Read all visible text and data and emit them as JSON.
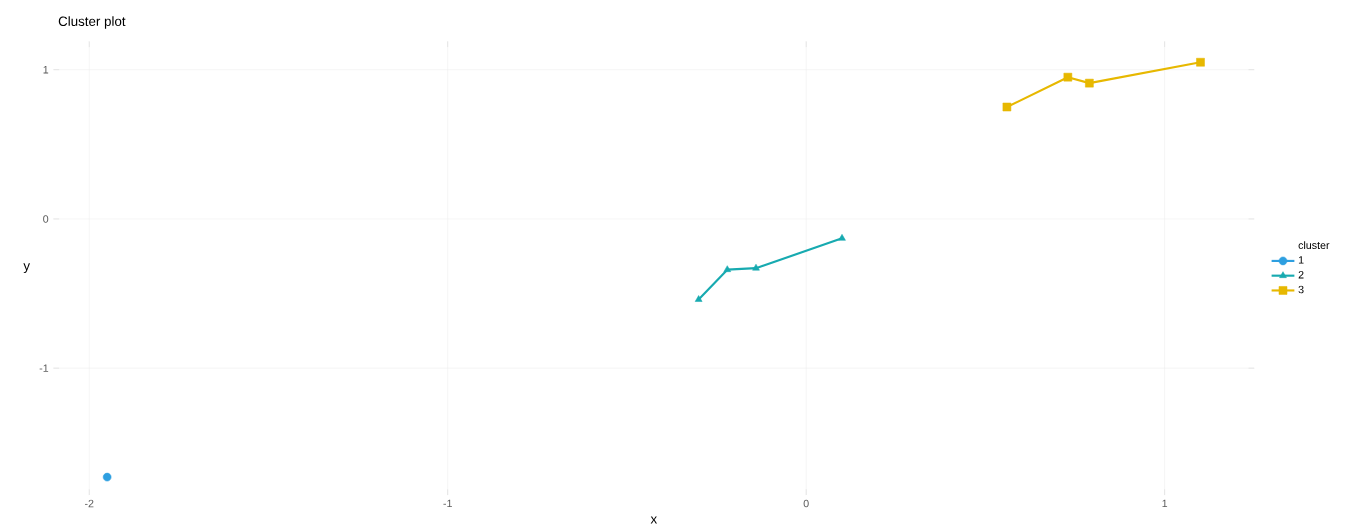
{
  "chart_data": {
    "type": "line",
    "title": "Cluster plot",
    "xlabel": "x",
    "ylabel": "y",
    "legend_title": "cluster",
    "xlim": [
      -2.1,
      1.25
    ],
    "ylim": [
      -1.85,
      1.19
    ],
    "xticks": [
      -2,
      -1,
      0,
      1
    ],
    "yticks": [
      -1,
      0,
      1
    ],
    "grid": true,
    "legend": "right",
    "series": [
      {
        "name": "1",
        "color": "#2e9fe0",
        "marker": "circle",
        "x": [
          -1.95
        ],
        "values": [
          -1.73
        ]
      },
      {
        "name": "2",
        "color": "#17aab0",
        "marker": "triangle",
        "x": [
          -0.3,
          -0.22,
          -0.14,
          0.1
        ],
        "values": [
          -0.54,
          -0.34,
          -0.33,
          -0.13
        ]
      },
      {
        "name": "3",
        "color": "#e7b800",
        "marker": "square",
        "x": [
          0.56,
          0.73,
          0.79,
          1.1
        ],
        "values": [
          0.75,
          0.95,
          0.91,
          1.05
        ]
      }
    ]
  }
}
